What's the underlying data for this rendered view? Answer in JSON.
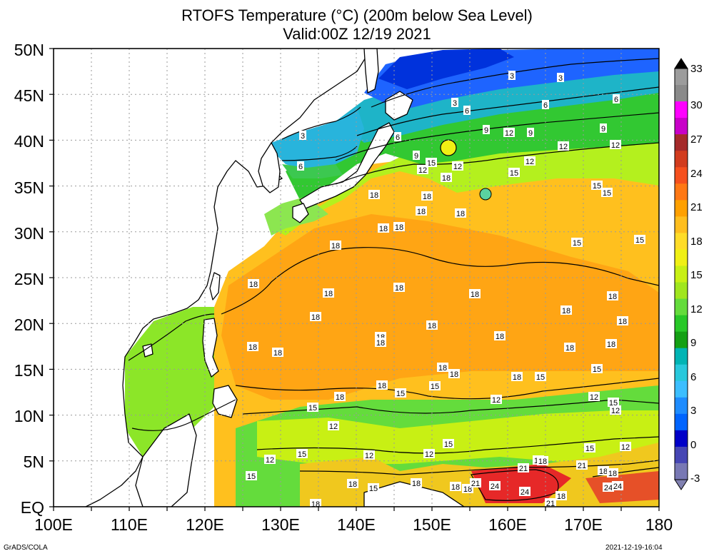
{
  "title": {
    "line1": "RTOFS Temperature (°C) (200m below Sea Level)",
    "line2": "Valid:00Z 12/19 2021"
  },
  "axes": {
    "lat_labels": [
      "50N",
      "45N",
      "40N",
      "35N",
      "30N",
      "25N",
      "20N",
      "15N",
      "10N",
      "5N",
      "EQ"
    ],
    "lon_labels": [
      "100E",
      "110E",
      "120E",
      "130E",
      "140E",
      "150E",
      "160E",
      "170E",
      "180"
    ],
    "lat_range": [
      0,
      50
    ],
    "lon_range": [
      100,
      180
    ],
    "grid": "dotted"
  },
  "colorbar": {
    "levels": [
      "33",
      "30",
      "27",
      "24",
      "21",
      "18",
      "15",
      "12",
      "9",
      "6",
      "3",
      "0",
      "-3"
    ],
    "colors": [
      "#9c9c9c",
      "#8a8a8a",
      "#ff00ff",
      "#c800c8",
      "#a52a2a",
      "#d23c1e",
      "#f5501e",
      "#ff7814",
      "#ffa000",
      "#ffbe1e",
      "#ffdc28",
      "#f0f014",
      "#c8f014",
      "#a0e61e",
      "#64dc3c",
      "#28c828",
      "#14a014",
      "#00b4b4",
      "#28c8dc",
      "#3cbeff",
      "#1e8cff",
      "#0064ff",
      "#0000c8",
      "#4646b4",
      "#7878b4"
    ]
  },
  "contour_labels": [
    "3",
    "6",
    "9",
    "12",
    "15",
    "18",
    "21",
    "24"
  ],
  "regions": {
    "subtropical_gyre_temp": "18",
    "kuroshio_extension_temp": "15",
    "north_temp": "3",
    "equatorial_warm_temp": "24"
  },
  "footer": {
    "left": "GrADS/COLA",
    "right": "2021-12-19-16:04"
  }
}
